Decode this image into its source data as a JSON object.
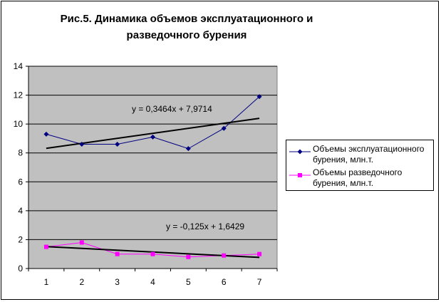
{
  "chart_data": {
    "type": "line",
    "title_line1": "Рис.5. Динамика объемов эксплуатационного и",
    "title_line2": "разведочного бурения",
    "categories": [
      "1",
      "2",
      "3",
      "4",
      "5",
      "6",
      "7"
    ],
    "ylim": [
      0,
      14
    ],
    "yticks": [
      "0",
      "2",
      "4",
      "6",
      "8",
      "10",
      "12",
      "14"
    ],
    "grid": true,
    "legend_position": "right",
    "plot_background": "#c0c0c0",
    "series": [
      {
        "name": "Объемы эксплуатационного бурения, млн.т.",
        "values": [
          9.3,
          8.6,
          8.6,
          9.1,
          8.3,
          9.7,
          11.9
        ],
        "color": "#000080",
        "marker": "diamond",
        "trendline": {
          "slope": 0.3464,
          "intercept": 7.9714,
          "label": "y = 0,3464x + 7,9714"
        }
      },
      {
        "name": "Объемы разведочного бурения, млн.т.",
        "values": [
          1.5,
          1.8,
          1.0,
          1.0,
          0.8,
          0.9,
          1.0
        ],
        "color": "#ff00ff",
        "marker": "square",
        "trendline": {
          "slope": -0.125,
          "intercept": 1.6429,
          "label": "y = -0,125x + 1,6429"
        }
      }
    ]
  }
}
